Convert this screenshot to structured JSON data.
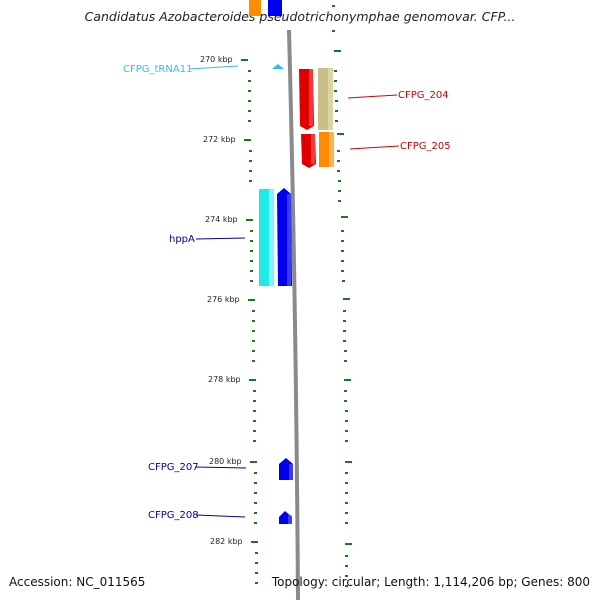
{
  "title": "Candidatus Azobacteroides pseudotrichonymphae genomovar. CFP...",
  "footer": {
    "accession": "Accession: NC_011565",
    "summary": "Topology: circular; Length: 1,114,206 bp; Genes: 800"
  },
  "ruler": {
    "tick_labels": [
      "270 kbp",
      "272 kbp",
      "274 kbp",
      "276 kbp",
      "278 kbp",
      "280 kbp",
      "282 kbp"
    ]
  },
  "gene_labels": [
    {
      "text": "CFPG_tRNA11",
      "color": "#33bbee"
    },
    {
      "text": "CFPG_204",
      "color": "#cc0000"
    },
    {
      "text": "CFPG_205",
      "color": "#cc0000"
    },
    {
      "text": "hppA",
      "color": "#0000aa"
    },
    {
      "text": "CFPG_207",
      "color": "#0000aa"
    },
    {
      "text": "CFPG_208",
      "color": "#0000aa"
    }
  ],
  "colors": {
    "backbone": "#8a8a8a",
    "tick": "#1a7a1a",
    "red": "#e00000",
    "khaki": "#c8c08a",
    "orange": "#ff8c00",
    "cyan": "#22e8e8",
    "blue": "#0000ee",
    "trna": "#33bbee"
  }
}
